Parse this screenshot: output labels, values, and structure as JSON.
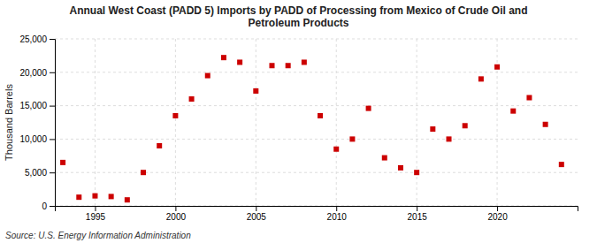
{
  "chart_data": {
    "type": "scatter",
    "title": "Annual West Coast (PADD 5) Imports by PADD of Processing from Mexico of Crude Oil and\nPetroleum Products",
    "ylabel": "Thousand Barrels",
    "source": "Source: U.S. Energy Information Administration",
    "color": "#cc0000",
    "marker": "square",
    "grid": true,
    "xlim": [
      1992.5,
      2025
    ],
    "ylim": [
      0,
      25000
    ],
    "xticks": [
      1995,
      2000,
      2005,
      2010,
      2015,
      2020
    ],
    "yticks": [
      0,
      {
        "value": 5000,
        "label": "5,000"
      },
      {
        "value": 10000,
        "label": "10,000"
      },
      {
        "value": 15000,
        "label": "15,000"
      },
      {
        "value": 20000,
        "label": "20,000"
      },
      {
        "value": 25000,
        "label": "25,000"
      }
    ],
    "x": [
      1993,
      1994,
      1995,
      1996,
      1997,
      1998,
      1999,
      2000,
      2001,
      2002,
      2003,
      2004,
      2005,
      2006,
      2007,
      2008,
      2009,
      2010,
      2011,
      2012,
      2013,
      2014,
      2015,
      2016,
      2017,
      2018,
      2019,
      2020,
      2021,
      2022,
      2023,
      2024
    ],
    "values": [
      6500,
      1300,
      1500,
      1400,
      900,
      5000,
      9000,
      13500,
      16000,
      19500,
      22200,
      21500,
      17200,
      21000,
      21000,
      21500,
      13500,
      8500,
      10000,
      14600,
      7200,
      5700,
      5000,
      11500,
      10000,
      12000,
      19000,
      20800,
      14200,
      16200,
      12200,
      6200
    ]
  }
}
